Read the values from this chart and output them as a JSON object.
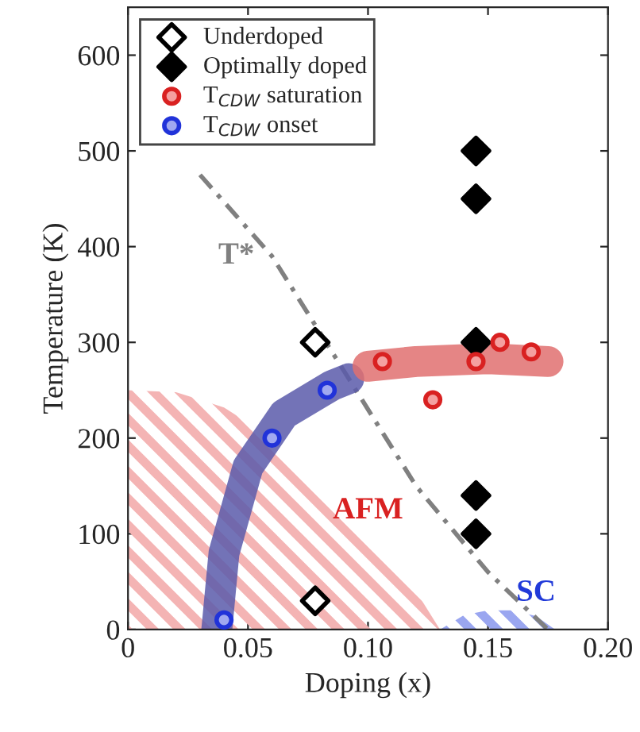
{
  "chart_data": {
    "type": "scatter",
    "xlabel": "Doping (x)",
    "ylabel": "Temperature (K)",
    "xlim": [
      0,
      0.2
    ],
    "xticks": [
      {
        "value": 0,
        "label": "0"
      },
      {
        "value": 0.05,
        "label": "0.05"
      },
      {
        "value": 0.1,
        "label": "0.10"
      },
      {
        "value": 0.15,
        "label": "0.15"
      },
      {
        "value": 0.2,
        "label": "0.20"
      }
    ],
    "ylim": [
      0,
      650
    ],
    "yticks": [
      0,
      100,
      200,
      300,
      400,
      500,
      600
    ],
    "grid": false,
    "annotations": [
      {
        "text": "AFM",
        "x": 0.1,
        "y": 100
      },
      {
        "text": "SC",
        "x": 0.17,
        "y": 14
      }
    ],
    "legend": "top left",
    "series": [
      {
        "type": "area",
        "color": "#f4b4b4",
        "x": [
          0,
          0.02,
          0.04,
          0.06,
          0.08,
          0.1,
          0.12,
          0.13
        ],
        "values": [
          250,
          248,
          232,
          200,
          150,
          100,
          40,
          0
        ]
      },
      {
        "type": "area",
        "color": "#9aa6f0",
        "x": [
          0.13,
          0.14,
          0.15,
          0.16,
          0.17,
          0.178
        ],
        "values": [
          0,
          15,
          20,
          20,
          14,
          0
        ]
      },
      {
        "type": "line",
        "name": "T*",
        "color": "#808080",
        "line_style": "dashed",
        "x": [
          0.03,
          0.06,
          0.09,
          0.12,
          0.15,
          0.175
        ],
        "values": [
          475,
          390,
          270,
          150,
          60,
          0
        ]
      },
      {
        "type": "line",
        "color": "#5a5aaa",
        "x": [
          0.037,
          0.04,
          0.05,
          0.065,
          0.085,
          0.092
        ],
        "values": [
          0,
          80,
          170,
          225,
          255,
          262
        ]
      },
      {
        "type": "line",
        "color": "#e07070",
        "x": [
          0.1,
          0.12,
          0.15,
          0.175
        ],
        "values": [
          275,
          280,
          283,
          280
        ]
      },
      {
        "name": "Underdoped",
        "marker": "diamond",
        "color": "#ffffff",
        "x": [
          0.078,
          0.078
        ],
        "values": [
          300,
          30
        ]
      },
      {
        "name": "Optimally doped",
        "marker": "diamond",
        "color": "#000000",
        "x": [
          0.145,
          0.145,
          0.145,
          0.145,
          0.145
        ],
        "values": [
          500,
          450,
          300,
          140,
          100
        ]
      },
      {
        "name": "T$_{CDW}$ saturation",
        "marker": "circle",
        "color": "#f4a0a0",
        "x": [
          0.106,
          0.127,
          0.145,
          0.155,
          0.168
        ],
        "values": [
          280,
          240,
          280,
          300,
          290
        ]
      },
      {
        "name": "T$_{CDW}$ onset",
        "marker": "circle",
        "color": "#a0a8f0",
        "x": [
          0.04,
          0.06,
          0.083
        ],
        "values": [
          10,
          200,
          250
        ]
      }
    ]
  }
}
